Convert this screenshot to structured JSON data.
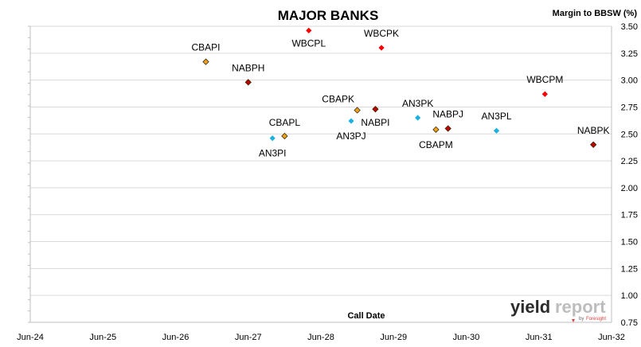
{
  "chart_data": {
    "type": "scatter",
    "title": "MAJOR BANKS",
    "ylabel": "Margin to BBSW (%)",
    "xlabel": "Call Date",
    "x_ticks": [
      "Jun-24",
      "Jun-25",
      "Jun-26",
      "Jun-27",
      "Jun-28",
      "Jun-29",
      "Jun-30",
      "Jun-31",
      "Jun-32"
    ],
    "xlim": [
      "Jun-24",
      "Jun-32"
    ],
    "ylim": [
      0.75,
      3.5
    ],
    "y_ticks": [
      "0.75",
      "1.00",
      "1.25",
      "1.50",
      "1.75",
      "2.00",
      "2.25",
      "2.50",
      "2.75",
      "3.00",
      "3.25",
      "3.50"
    ],
    "grid": true,
    "y_axis_side": "right",
    "series": [
      {
        "color": "#ff0000",
        "points": [
          {
            "label": "WBCPL",
            "x": "2028-04",
            "y": 3.46
          },
          {
            "label": "WBCPK",
            "x": "2029-04",
            "y": 3.3
          },
          {
            "label": "WBCPM",
            "x": "2031-07",
            "y": 2.87
          }
        ]
      },
      {
        "color": "#f0a020",
        "points": [
          {
            "label": "CBAPI",
            "x": "2026-11",
            "y": 3.17
          },
          {
            "label": "CBAPL",
            "x": "2027-12",
            "y": 2.48
          },
          {
            "label": "CBAPK",
            "x": "2028-12",
            "y": 2.72
          },
          {
            "label": "CBAPM",
            "x": "2030-01",
            "y": 2.54
          }
        ]
      },
      {
        "color": "#c00000",
        "points": [
          {
            "label": "NABPH",
            "x": "2027-06",
            "y": 2.98
          },
          {
            "label": "NABPI",
            "x": "2029-03",
            "y": 2.73
          },
          {
            "label": "NABPJ",
            "x": "2030-03",
            "y": 2.55
          },
          {
            "label": "NABPK",
            "x": "2032-03",
            "y": 2.4
          }
        ]
      },
      {
        "color": "#1ab0e0",
        "points": [
          {
            "label": "AN3PI",
            "x": "2027-10",
            "y": 2.46
          },
          {
            "label": "AN3PJ",
            "x": "2028-11",
            "y": 2.62
          },
          {
            "label": "AN3PK",
            "x": "2029-10",
            "y": 2.65
          },
          {
            "label": "AN3PL",
            "x": "2030-11",
            "y": 2.53
          }
        ]
      }
    ]
  },
  "watermark": {
    "brand_dark": "yield",
    "brand_light": "report",
    "byline": "by",
    "byline_brand": "Foresight"
  }
}
